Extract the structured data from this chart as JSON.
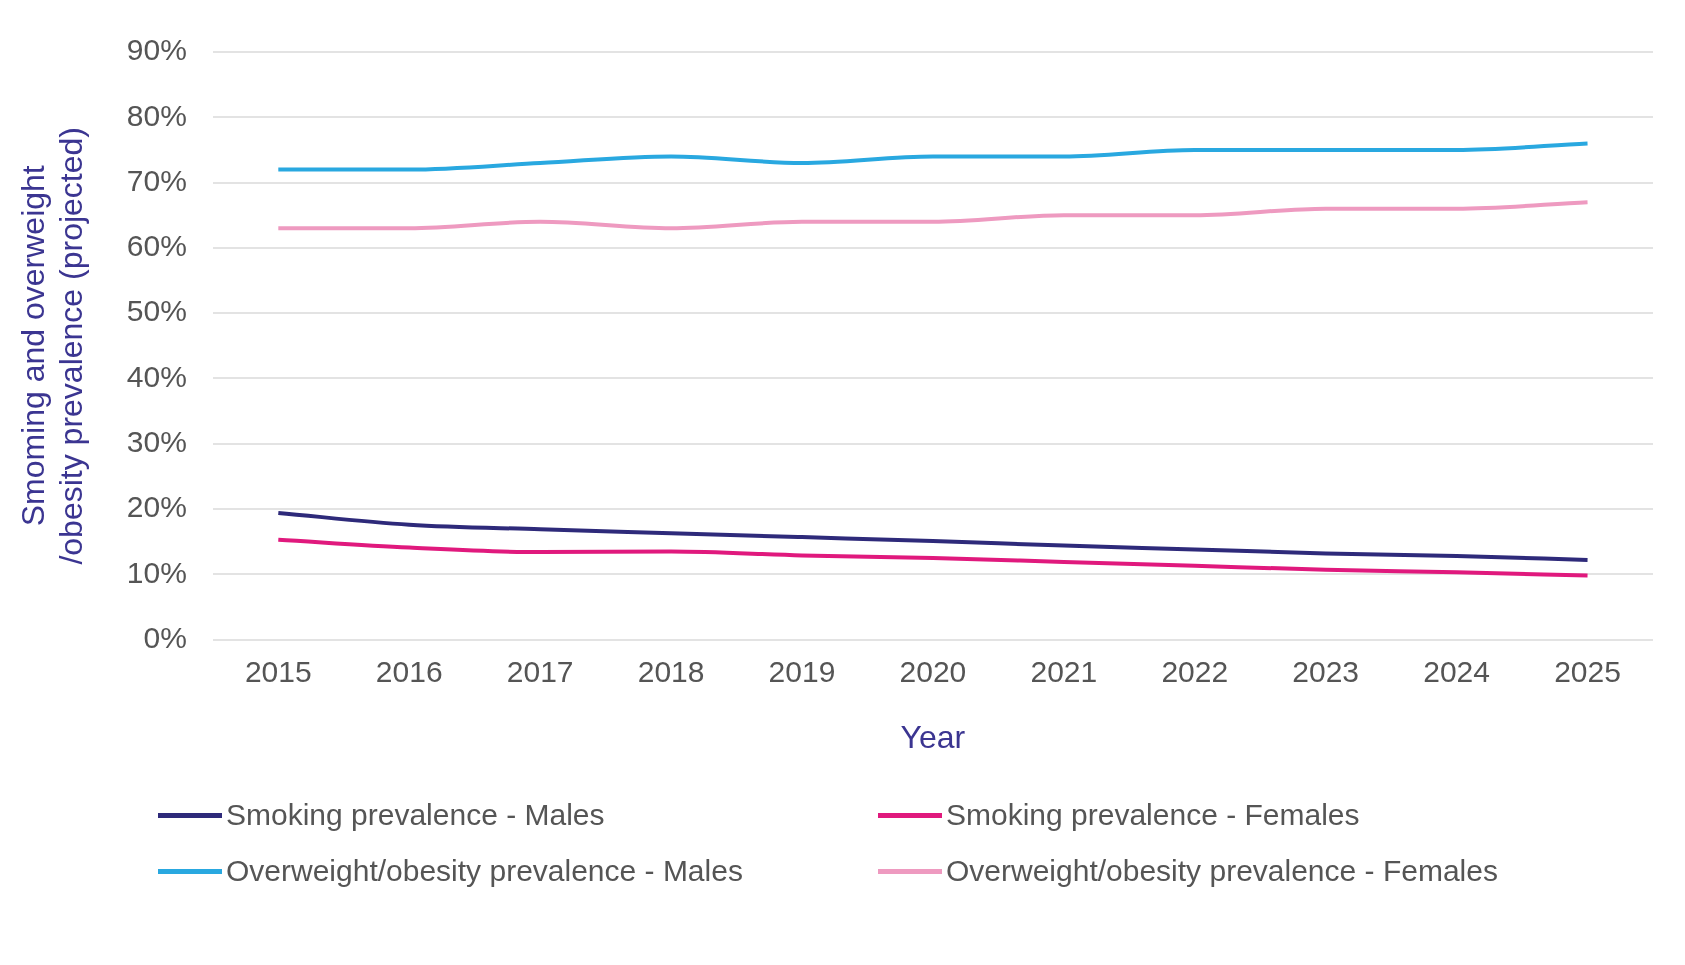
{
  "chart_data": {
    "type": "line",
    "xlabel": "Year",
    "ylabel": "Smoming and overweight /obesity prevalence (projected)",
    "categories": [
      "2015",
      "2016",
      "2017",
      "2018",
      "2019",
      "2020",
      "2021",
      "2022",
      "2023",
      "2024",
      "2025"
    ],
    "series": [
      {
        "name": "Smoking prevalence - Males",
        "color": "#2e2a7a",
        "values": [
          19.4,
          17.6,
          16.9,
          16.3,
          15.7,
          15.1,
          14.4,
          13.8,
          13.2,
          12.8,
          12.2
        ]
      },
      {
        "name": "Smoking prevalence - Females",
        "color": "#e0197d",
        "values": [
          15.3,
          14.1,
          13.4,
          13.5,
          12.9,
          12.5,
          11.9,
          11.3,
          10.7,
          10.3,
          9.8
        ]
      },
      {
        "name": "Overweight/obesity prevalence - Males",
        "color": "#29a8e0",
        "values": [
          72,
          72,
          73,
          74,
          73,
          74,
          74,
          75,
          75,
          75,
          76
        ]
      },
      {
        "name": "Overweight/obesity prevalence - Females",
        "color": "#ee9ac0",
        "values": [
          63,
          63,
          64,
          63,
          64,
          64,
          65,
          65,
          66,
          66,
          67
        ]
      }
    ],
    "ylim": [
      0,
      90
    ],
    "yticks": [
      {
        "value": 0,
        "label": "0%"
      },
      {
        "value": 10,
        "label": "10%"
      },
      {
        "value": 20,
        "label": "20%"
      },
      {
        "value": 30,
        "label": "30%"
      },
      {
        "value": 40,
        "label": "40%"
      },
      {
        "value": 50,
        "label": "50%"
      },
      {
        "value": 60,
        "label": "60%"
      },
      {
        "value": 70,
        "label": "70%"
      },
      {
        "value": 80,
        "label": "80%"
      },
      {
        "value": 90,
        "label": "90%"
      }
    ],
    "grid": "y",
    "legend": "bottom",
    "marker": "none",
    "line_style": "solid"
  }
}
